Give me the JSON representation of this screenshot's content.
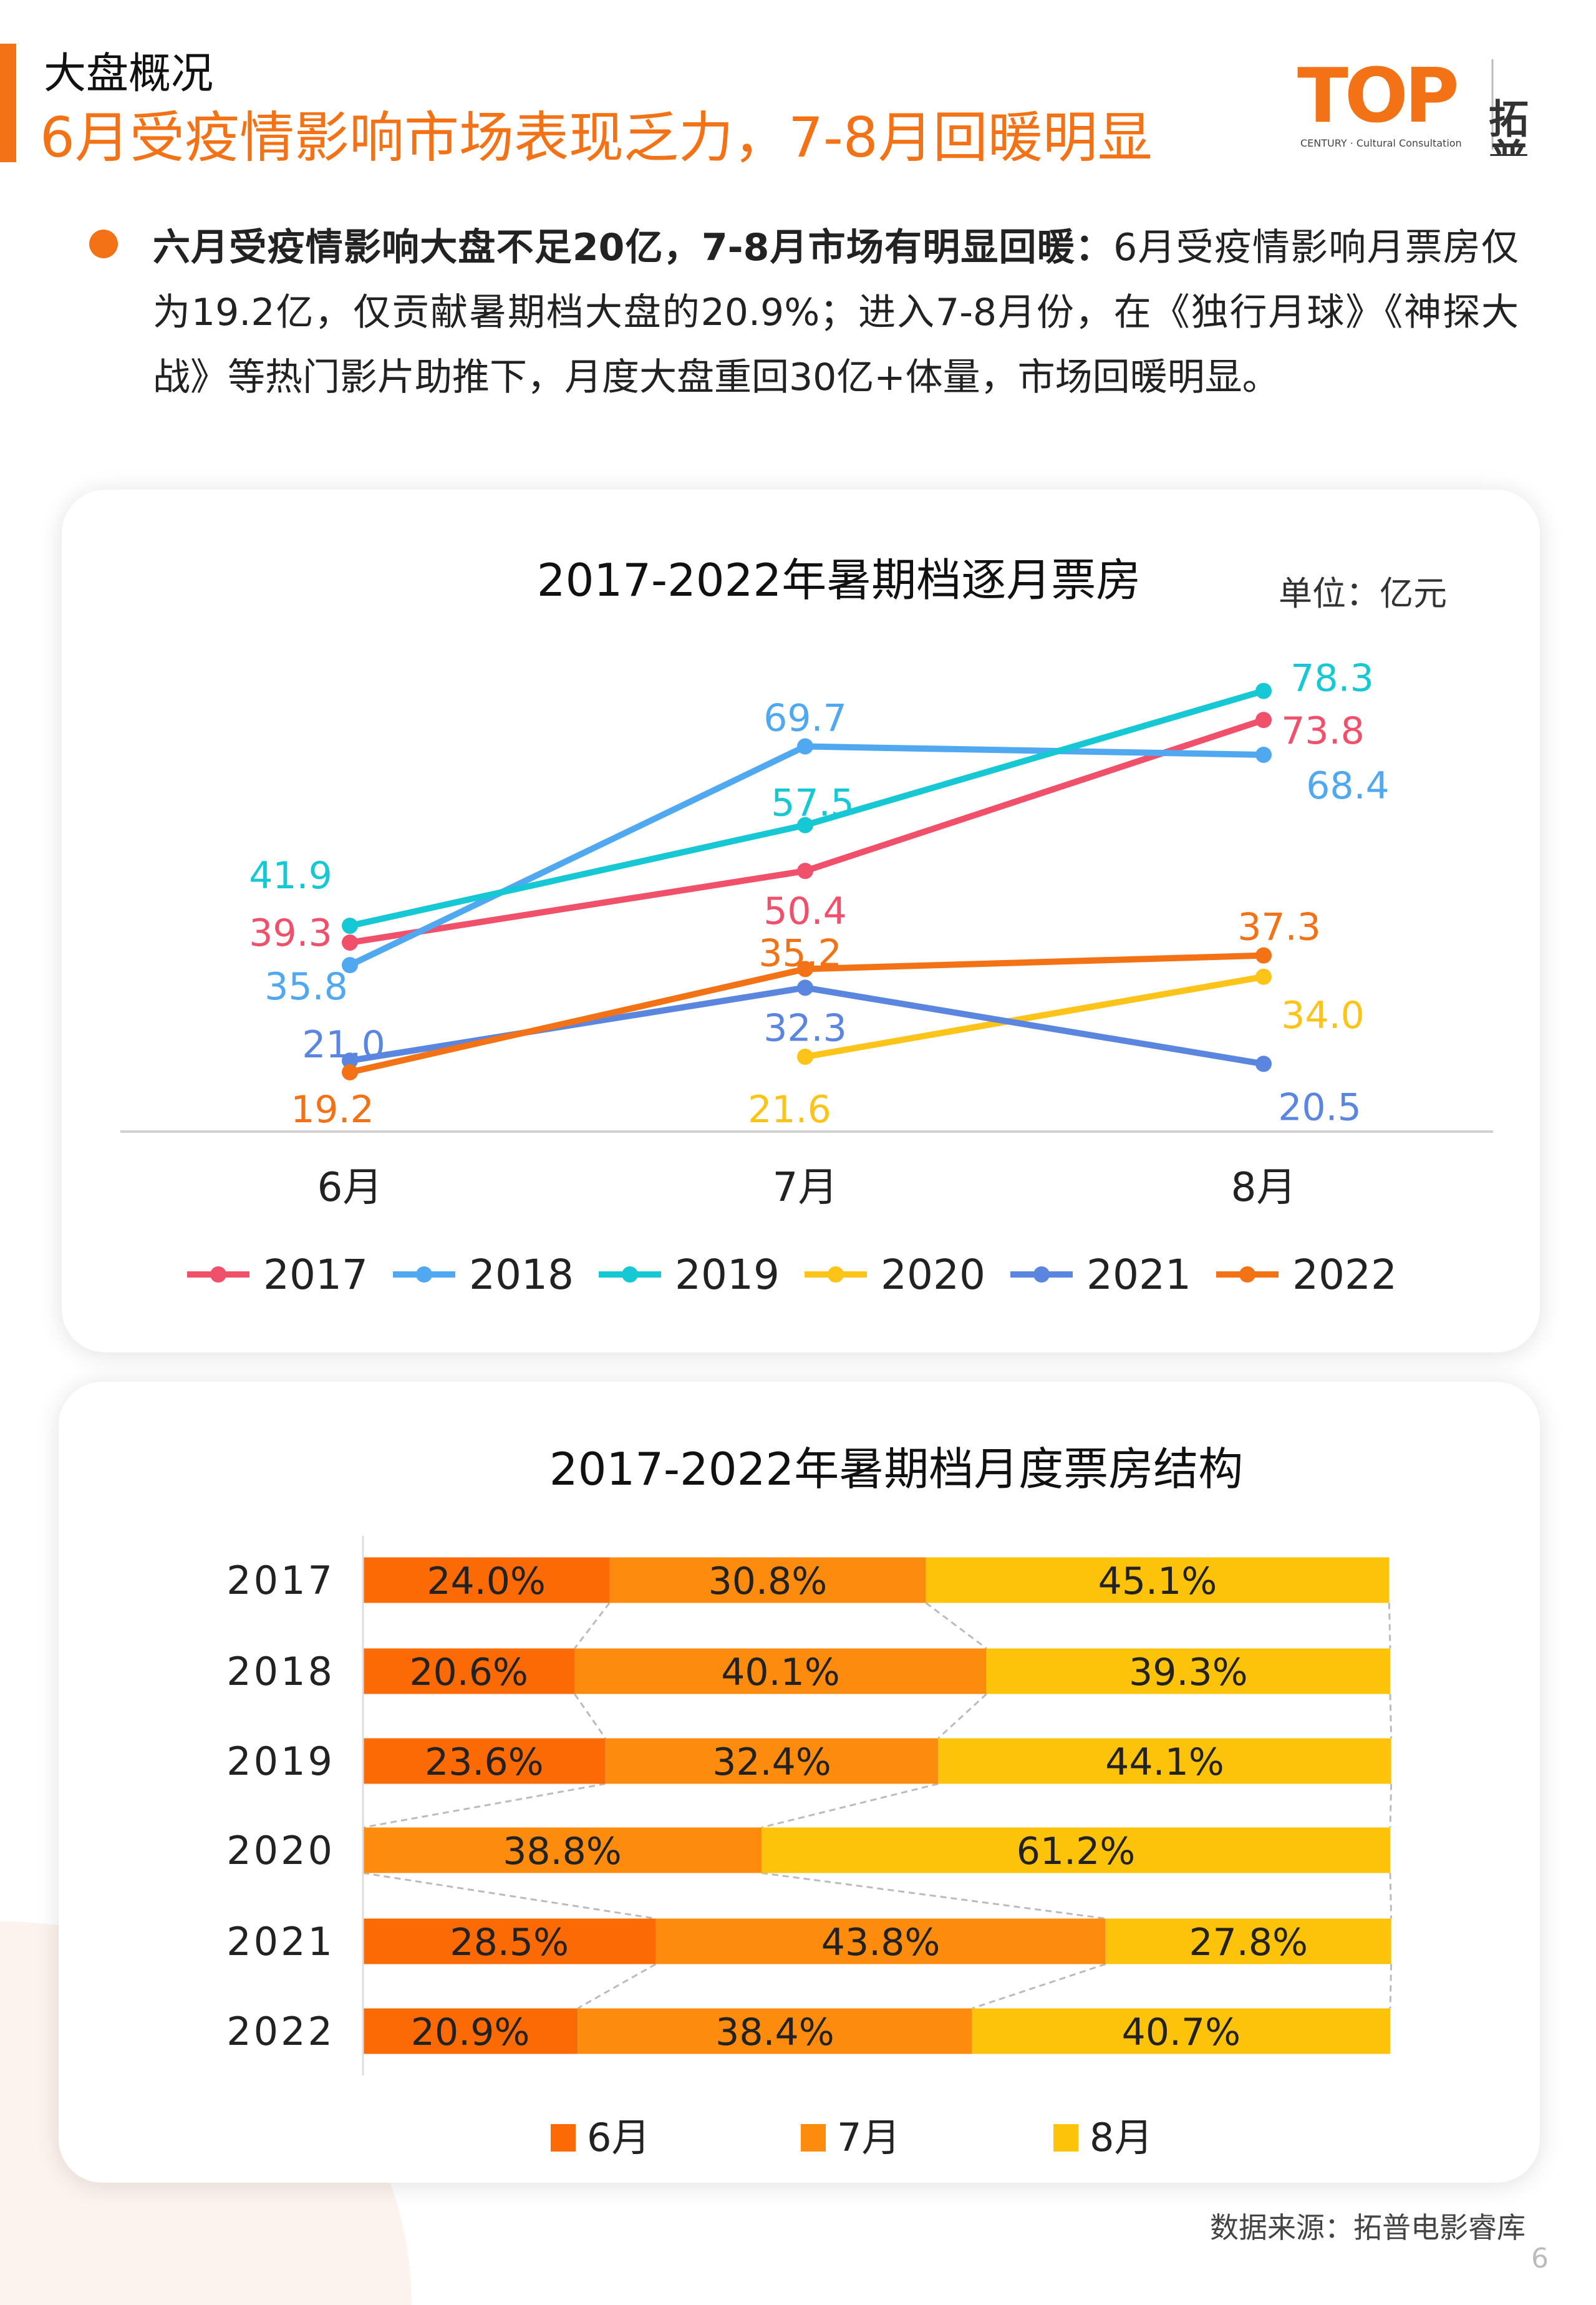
{
  "header": {
    "section": "大盘概况",
    "headline": "6月受疫情影响市场表现乏力，7-8月回暖明显",
    "logo_text": "TOP",
    "logo_sub": "CENTURY · Cultural Consultation",
    "logo_cn": "拓普"
  },
  "intro": {
    "bold": "六月受疫情影响大盘不足20亿，7-8月市场有明显回暖：",
    "text": "6月受疫情影响月票房仅为19.2亿，仅贡献暑期档大盘的20.9%；进入7-8月份，在《独行月球》《神探大战》等热门影片助推下，月度大盘重回30亿+体量，市场回暖明显。"
  },
  "chart_data": [
    {
      "type": "line",
      "title": "2017-2022年暑期档逐月票房",
      "unit": "单位：亿元",
      "categories": [
        "6月",
        "7月",
        "8月"
      ],
      "ylim": [
        10,
        80
      ],
      "grid": false,
      "legend": "bottom",
      "series": [
        {
          "name": "2017",
          "color": "#f0506a",
          "values": [
            39.3,
            50.4,
            73.8
          ]
        },
        {
          "name": "2018",
          "color": "#4fa8f0",
          "values": [
            35.8,
            69.7,
            68.4
          ]
        },
        {
          "name": "2019",
          "color": "#16c8d4",
          "values": [
            41.9,
            57.5,
            78.3
          ]
        },
        {
          "name": "2020",
          "color": "#fcc419",
          "values": [
            null,
            21.6,
            34.0
          ]
        },
        {
          "name": "2021",
          "color": "#5a86e0",
          "values": [
            21.0,
            32.3,
            20.5
          ]
        },
        {
          "name": "2022",
          "color": "#f47216",
          "values": [
            19.2,
            35.2,
            37.3
          ]
        }
      ]
    },
    {
      "type": "bar",
      "stacked": "100%",
      "orientation": "horizontal",
      "title": "2017-2022年暑期档月度票房结构",
      "categories": [
        "2017",
        "2018",
        "2019",
        "2020",
        "2021",
        "2022"
      ],
      "legend": "bottom",
      "series": [
        {
          "name": "6月",
          "color": "#fb6a05",
          "values": [
            24.0,
            20.6,
            23.6,
            0,
            28.5,
            20.9
          ]
        },
        {
          "name": "7月",
          "color": "#fd8c0e",
          "values": [
            30.8,
            40.1,
            32.4,
            38.8,
            43.8,
            38.4
          ]
        },
        {
          "name": "8月",
          "color": "#fcc30a",
          "values": [
            45.1,
            39.3,
            44.1,
            61.2,
            27.8,
            40.7
          ]
        }
      ]
    }
  ],
  "footer": {
    "source": "数据来源：拓普电影睿库",
    "page": "6"
  }
}
